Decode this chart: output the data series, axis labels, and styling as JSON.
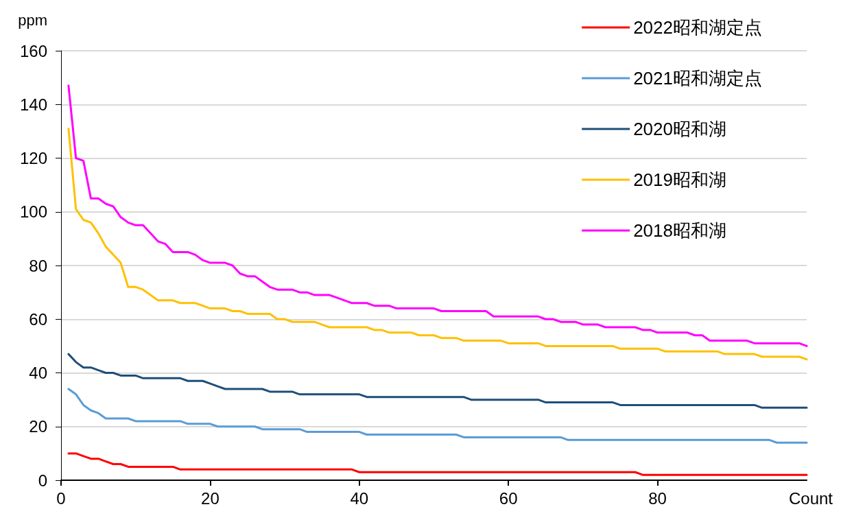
{
  "chart_data": {
    "type": "line",
    "xlabel": "Count",
    "ylabel": "ppm",
    "x": [
      1,
      2,
      3,
      4,
      5,
      6,
      7,
      8,
      9,
      10,
      11,
      12,
      13,
      14,
      15,
      16,
      17,
      18,
      19,
      20,
      21,
      22,
      23,
      24,
      25,
      26,
      27,
      28,
      29,
      30,
      31,
      32,
      33,
      34,
      35,
      36,
      37,
      38,
      39,
      40,
      41,
      42,
      43,
      44,
      45,
      46,
      47,
      48,
      49,
      50,
      51,
      52,
      53,
      54,
      55,
      56,
      57,
      58,
      59,
      60,
      61,
      62,
      63,
      64,
      65,
      66,
      67,
      68,
      69,
      70,
      71,
      72,
      73,
      74,
      75,
      76,
      77,
      78,
      79,
      80,
      81,
      82,
      83,
      84,
      85,
      86,
      87,
      88,
      89,
      90,
      91,
      92,
      93,
      94,
      95,
      96,
      97,
      98,
      99,
      100
    ],
    "xlim": [
      0,
      100
    ],
    "xticks": [
      0,
      20,
      40,
      60,
      80
    ],
    "ylim": [
      0,
      160
    ],
    "yticks": [
      0,
      20,
      40,
      60,
      80,
      100,
      120,
      140,
      160
    ],
    "grid": "y",
    "legend": "top right",
    "marker": "none",
    "line_style": "solid",
    "series": [
      {
        "name": "2022昭和湖定点",
        "color": "#ff0000",
        "values": [
          10,
          10,
          9,
          8,
          8,
          7,
          6,
          6,
          5,
          5,
          5,
          5,
          5,
          5,
          5,
          4,
          4,
          4,
          4,
          4,
          4,
          4,
          4,
          4,
          4,
          4,
          4,
          4,
          4,
          4,
          4,
          4,
          4,
          4,
          4,
          4,
          4,
          4,
          4,
          3,
          3,
          3,
          3,
          3,
          3,
          3,
          3,
          3,
          3,
          3,
          3,
          3,
          3,
          3,
          3,
          3,
          3,
          3,
          3,
          3,
          3,
          3,
          3,
          3,
          3,
          3,
          3,
          3,
          3,
          3,
          3,
          3,
          3,
          3,
          3,
          3,
          3,
          2,
          2,
          2,
          2,
          2,
          2,
          2,
          2,
          2,
          2,
          2,
          2,
          2,
          2,
          2,
          2,
          2,
          2,
          2,
          2,
          2,
          2,
          2
        ]
      },
      {
        "name": "2021昭和湖定点",
        "color": "#5b9bd5",
        "values": [
          34,
          32,
          28,
          26,
          25,
          23,
          23,
          23,
          23,
          22,
          22,
          22,
          22,
          22,
          22,
          22,
          21,
          21,
          21,
          21,
          20,
          20,
          20,
          20,
          20,
          20,
          19,
          19,
          19,
          19,
          19,
          19,
          18,
          18,
          18,
          18,
          18,
          18,
          18,
          18,
          17,
          17,
          17,
          17,
          17,
          17,
          17,
          17,
          17,
          17,
          17,
          17,
          17,
          16,
          16,
          16,
          16,
          16,
          16,
          16,
          16,
          16,
          16,
          16,
          16,
          16,
          16,
          15,
          15,
          15,
          15,
          15,
          15,
          15,
          15,
          15,
          15,
          15,
          15,
          15,
          15,
          15,
          15,
          15,
          15,
          15,
          15,
          15,
          15,
          15,
          15,
          15,
          15,
          15,
          15,
          14,
          14,
          14,
          14,
          14
        ]
      },
      {
        "name": "2020昭和湖",
        "color": "#1f4e79",
        "values": [
          47,
          44,
          42,
          42,
          41,
          40,
          40,
          39,
          39,
          39,
          38,
          38,
          38,
          38,
          38,
          38,
          37,
          37,
          37,
          36,
          35,
          34,
          34,
          34,
          34,
          34,
          34,
          33,
          33,
          33,
          33,
          32,
          32,
          32,
          32,
          32,
          32,
          32,
          32,
          32,
          31,
          31,
          31,
          31,
          31,
          31,
          31,
          31,
          31,
          31,
          31,
          31,
          31,
          31,
          30,
          30,
          30,
          30,
          30,
          30,
          30,
          30,
          30,
          30,
          29,
          29,
          29,
          29,
          29,
          29,
          29,
          29,
          29,
          29,
          28,
          28,
          28,
          28,
          28,
          28,
          28,
          28,
          28,
          28,
          28,
          28,
          28,
          28,
          28,
          28,
          28,
          28,
          28,
          27,
          27,
          27,
          27,
          27,
          27,
          27
        ]
      },
      {
        "name": "2019昭和湖",
        "color": "#ffc000",
        "values": [
          131,
          101,
          97,
          96,
          92,
          87,
          84,
          81,
          72,
          72,
          71,
          69,
          67,
          67,
          67,
          66,
          66,
          66,
          65,
          64,
          64,
          64,
          63,
          63,
          62,
          62,
          62,
          62,
          60,
          60,
          59,
          59,
          59,
          59,
          58,
          57,
          57,
          57,
          57,
          57,
          57,
          56,
          56,
          55,
          55,
          55,
          55,
          54,
          54,
          54,
          53,
          53,
          53,
          52,
          52,
          52,
          52,
          52,
          52,
          51,
          51,
          51,
          51,
          51,
          50,
          50,
          50,
          50,
          50,
          50,
          50,
          50,
          50,
          50,
          49,
          49,
          49,
          49,
          49,
          49,
          48,
          48,
          48,
          48,
          48,
          48,
          48,
          48,
          47,
          47,
          47,
          47,
          47,
          46,
          46,
          46,
          46,
          46,
          46,
          45
        ]
      },
      {
        "name": "2018昭和湖",
        "color": "#ff00ff",
        "values": [
          147,
          120,
          119,
          105,
          105,
          103,
          102,
          98,
          96,
          95,
          95,
          92,
          89,
          88,
          85,
          85,
          85,
          84,
          82,
          81,
          81,
          81,
          80,
          77,
          76,
          76,
          74,
          72,
          71,
          71,
          71,
          70,
          70,
          69,
          69,
          69,
          68,
          67,
          66,
          66,
          66,
          65,
          65,
          65,
          64,
          64,
          64,
          64,
          64,
          64,
          63,
          63,
          63,
          63,
          63,
          63,
          63,
          61,
          61,
          61,
          61,
          61,
          61,
          61,
          60,
          60,
          59,
          59,
          59,
          58,
          58,
          58,
          57,
          57,
          57,
          57,
          57,
          56,
          56,
          55,
          55,
          55,
          55,
          55,
          54,
          54,
          52,
          52,
          52,
          52,
          52,
          52,
          51,
          51,
          51,
          51,
          51,
          51,
          51,
          50
        ]
      }
    ]
  }
}
